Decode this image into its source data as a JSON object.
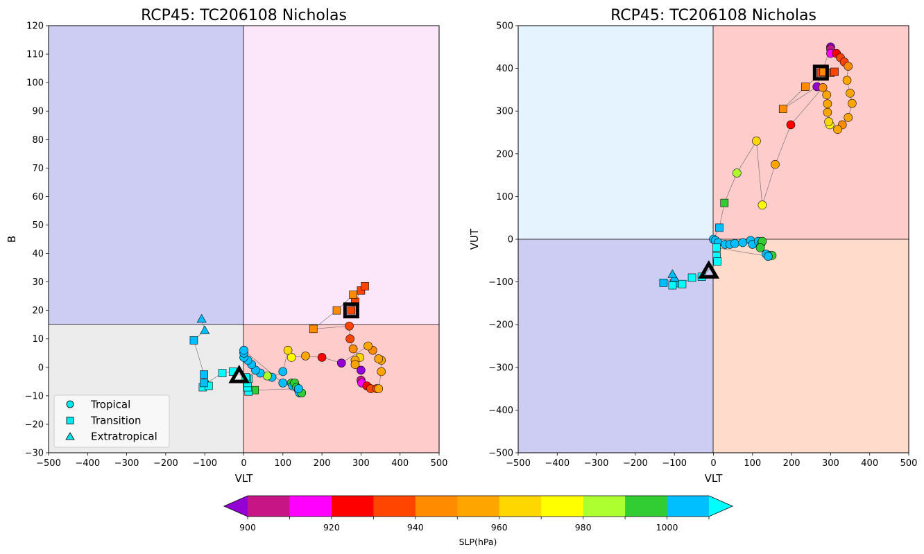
{
  "colors": {
    "quad_ll_left": "#ececec",
    "quad_ul_left": "#cdcdf4",
    "quad_ur_left": "#fce6f9",
    "quad_lr_left": "#ffcccc",
    "quad_ul_right": "#e5f3fe",
    "quad_ur_right": "#ffcccc",
    "quad_ll_right": "#cdcdf4",
    "quad_lr_right": "#ffdbcc",
    "track_line": "#666666"
  },
  "colorbar": {
    "label": "SLP(hPa)",
    "levels": [
      900,
      910,
      920,
      930,
      940,
      950,
      960,
      970,
      980,
      990,
      1000,
      1010
    ],
    "colors": [
      "#c71585",
      "#ff00ff",
      "#ff0000",
      "#ff4500",
      "#ff8c00",
      "#ffa500",
      "#ffd700",
      "#ffff00",
      "#adff2f",
      "#32cd32",
      "#00bfff"
    ],
    "under_color": "#9400d3",
    "over_color": "#00ffff",
    "tick_labels": [
      "900",
      "920",
      "940",
      "960",
      "980",
      "1000"
    ]
  },
  "legend": {
    "items": [
      {
        "label": "Tropical",
        "marker": "circle"
      },
      {
        "label": "Transition",
        "marker": "square"
      },
      {
        "label": "Extratropical",
        "marker": "triangle"
      }
    ]
  },
  "chart_data": [
    {
      "type": "scatter",
      "title": "RCP45: TC206108 Nicholas",
      "xlabel": "VLT",
      "ylabel": "B",
      "xlim": [
        -500,
        500
      ],
      "ylim": [
        -30,
        120
      ],
      "xticks": [
        -500,
        -400,
        -300,
        -200,
        -100,
        0,
        100,
        200,
        300,
        400,
        500
      ],
      "yticks": [
        -30,
        -20,
        -10,
        0,
        10,
        20,
        30,
        40,
        50,
        60,
        70,
        80,
        90,
        100,
        110,
        120
      ],
      "threshold_x": 0,
      "threshold_y": 15,
      "start_marker": {
        "x": 275,
        "y": 20,
        "type": "square"
      },
      "end_marker": {
        "x": -12,
        "y": -3,
        "type": "triangle"
      },
      "points": [
        {
          "x": 275,
          "y": 20,
          "slp": 935,
          "type": "square"
        },
        {
          "x": 285,
          "y": 23,
          "slp": 932,
          "type": "square"
        },
        {
          "x": 300,
          "y": 27,
          "slp": 934,
          "type": "square"
        },
        {
          "x": 310,
          "y": 28.5,
          "slp": 937,
          "type": "square"
        },
        {
          "x": 280,
          "y": 25.5,
          "slp": 943,
          "type": "square"
        },
        {
          "x": 238,
          "y": 20,
          "slp": 945,
          "type": "square"
        },
        {
          "x": 178,
          "y": 13.5,
          "slp": 946,
          "type": "square"
        },
        {
          "x": 270,
          "y": 14.5,
          "slp": 935,
          "type": "circle"
        },
        {
          "x": 272,
          "y": 10,
          "slp": 933,
          "type": "circle"
        },
        {
          "x": 280,
          "y": 6.5,
          "slp": 948,
          "type": "circle"
        },
        {
          "x": 297,
          "y": 3.5,
          "slp": 962,
          "type": "circle"
        },
        {
          "x": 285,
          "y": 2.5,
          "slp": 955,
          "type": "circle"
        },
        {
          "x": 285,
          "y": 1,
          "slp": 958,
          "type": "circle"
        },
        {
          "x": 300,
          "y": -1,
          "slp": 898,
          "type": "circle"
        },
        {
          "x": 300,
          "y": -4.5,
          "slp": 905,
          "type": "circle"
        },
        {
          "x": 302,
          "y": -5.5,
          "slp": 912,
          "type": "circle"
        },
        {
          "x": 315,
          "y": -6.5,
          "slp": 925,
          "type": "circle"
        },
        {
          "x": 325,
          "y": -7.5,
          "slp": 930,
          "type": "circle"
        },
        {
          "x": 340,
          "y": -7.5,
          "slp": 935,
          "type": "circle"
        },
        {
          "x": 345,
          "y": -7.5,
          "slp": 955,
          "type": "circle"
        },
        {
          "x": 352,
          "y": -1.5,
          "slp": 952,
          "type": "circle"
        },
        {
          "x": 352,
          "y": 2.5,
          "slp": 955,
          "type": "circle"
        },
        {
          "x": 345,
          "y": 3,
          "slp": 950,
          "type": "circle"
        },
        {
          "x": 330,
          "y": 6,
          "slp": 948,
          "type": "circle"
        },
        {
          "x": 318,
          "y": 7.5,
          "slp": 953,
          "type": "circle"
        },
        {
          "x": 250,
          "y": 1.5,
          "slp": 898,
          "type": "circle"
        },
        {
          "x": 200,
          "y": 3.5,
          "slp": 925,
          "type": "circle"
        },
        {
          "x": 158,
          "y": 4,
          "slp": 955,
          "type": "circle"
        },
        {
          "x": 122,
          "y": 3.5,
          "slp": 975,
          "type": "circle"
        },
        {
          "x": 113,
          "y": 6,
          "slp": 965,
          "type": "circle"
        },
        {
          "x": 100,
          "y": -1.5,
          "slp": 1005,
          "type": "circle"
        },
        {
          "x": 72,
          "y": -3.5,
          "slp": 1005,
          "type": "circle"
        },
        {
          "x": 60,
          "y": -3,
          "slp": 985,
          "type": "circle"
        },
        {
          "x": 42,
          "y": -2,
          "slp": 1005,
          "type": "circle"
        },
        {
          "x": 30,
          "y": -1,
          "slp": 1005,
          "type": "circle"
        },
        {
          "x": 20,
          "y": 1,
          "slp": 1005,
          "type": "circle"
        },
        {
          "x": 10,
          "y": 2.5,
          "slp": 1005,
          "type": "circle"
        },
        {
          "x": 0,
          "y": 3.5,
          "slp": 1005,
          "type": "circle"
        },
        {
          "x": 0,
          "y": 5,
          "slp": 1005,
          "type": "circle"
        },
        {
          "x": 0,
          "y": 6,
          "slp": 1005,
          "type": "circle"
        },
        {
          "x": 100,
          "y": -5.5,
          "slp": 1005,
          "type": "circle"
        },
        {
          "x": 122,
          "y": -5.5,
          "slp": 995,
          "type": "circle"
        },
        {
          "x": 125,
          "y": -6.5,
          "slp": 1005,
          "type": "circle"
        },
        {
          "x": 130,
          "y": -5.5,
          "slp": 995,
          "type": "circle"
        },
        {
          "x": 135,
          "y": -7,
          "slp": 995,
          "type": "circle"
        },
        {
          "x": 140,
          "y": -8,
          "slp": 1005,
          "type": "circle"
        },
        {
          "x": 143,
          "y": -9,
          "slp": 1005,
          "type": "circle"
        },
        {
          "x": 148,
          "y": -9,
          "slp": 995,
          "type": "circle"
        },
        {
          "x": 140,
          "y": -7.5,
          "slp": 1005,
          "type": "circle"
        },
        {
          "x": 28,
          "y": -8,
          "slp": 995,
          "type": "square"
        },
        {
          "x": 12,
          "y": -8.5,
          "slp": 1012,
          "type": "square"
        },
        {
          "x": 10,
          "y": -7,
          "slp": 1012,
          "type": "square"
        },
        {
          "x": 10,
          "y": -5.5,
          "slp": 1012,
          "type": "square"
        },
        {
          "x": 12,
          "y": -4,
          "slp": 1012,
          "type": "square"
        },
        {
          "x": 8,
          "y": -4,
          "slp": 1012,
          "type": "square"
        },
        {
          "x": 5,
          "y": -3.5,
          "slp": 1012,
          "type": "square"
        },
        {
          "x": -28,
          "y": -1.5,
          "slp": 1012,
          "type": "square"
        },
        {
          "x": -55,
          "y": -2,
          "slp": 1012,
          "type": "square"
        },
        {
          "x": -100,
          "y": -6,
          "slp": 1012,
          "type": "square"
        },
        {
          "x": -105,
          "y": -7,
          "slp": 1012,
          "type": "square"
        },
        {
          "x": -90,
          "y": -6.5,
          "slp": 1012,
          "type": "square"
        },
        {
          "x": -102,
          "y": -5.5,
          "slp": 1005,
          "type": "square"
        },
        {
          "x": -102,
          "y": -2.5,
          "slp": 1005,
          "type": "square"
        },
        {
          "x": -128,
          "y": 9.5,
          "slp": 1005,
          "type": "square"
        },
        {
          "x": -100,
          "y": 13,
          "slp": 1005,
          "type": "triangle"
        },
        {
          "x": -108,
          "y": 17,
          "slp": 1005,
          "type": "triangle"
        }
      ]
    },
    {
      "type": "scatter",
      "title": "RCP45: TC206108 Nicholas",
      "xlabel": "VLT",
      "ylabel": "VUT",
      "xlim": [
        -500,
        500
      ],
      "ylim": [
        -500,
        500
      ],
      "xticks": [
        -500,
        -400,
        -300,
        -200,
        -100,
        0,
        100,
        200,
        300,
        400,
        500
      ],
      "yticks": [
        -500,
        -400,
        -300,
        -200,
        -100,
        0,
        100,
        200,
        300,
        400,
        500
      ],
      "threshold_x": 0,
      "threshold_y": 0,
      "start_marker": {
        "x": 275,
        "y": 390,
        "type": "square"
      },
      "end_marker": {
        "x": -12,
        "y": -75,
        "type": "triangle"
      },
      "points": [
        {
          "x": 275,
          "y": 390,
          "slp": 935,
          "type": "square"
        },
        {
          "x": 290,
          "y": 390,
          "slp": 930,
          "type": "square"
        },
        {
          "x": 300,
          "y": 390,
          "slp": 935,
          "type": "square"
        },
        {
          "x": 310,
          "y": 392,
          "slp": 937,
          "type": "square"
        },
        {
          "x": 282,
          "y": 392,
          "slp": 940,
          "type": "square"
        },
        {
          "x": 235,
          "y": 357,
          "slp": 945,
          "type": "square"
        },
        {
          "x": 178,
          "y": 305,
          "slp": 946,
          "type": "square"
        },
        {
          "x": 265,
          "y": 357,
          "slp": 898,
          "type": "circle"
        },
        {
          "x": 300,
          "y": 450,
          "slp": 898,
          "type": "circle"
        },
        {
          "x": 300,
          "y": 445,
          "slp": 905,
          "type": "circle"
        },
        {
          "x": 300,
          "y": 435,
          "slp": 912,
          "type": "circle"
        },
        {
          "x": 315,
          "y": 435,
          "slp": 925,
          "type": "circle"
        },
        {
          "x": 325,
          "y": 425,
          "slp": 930,
          "type": "circle"
        },
        {
          "x": 335,
          "y": 415,
          "slp": 935,
          "type": "circle"
        },
        {
          "x": 345,
          "y": 405,
          "slp": 948,
          "type": "circle"
        },
        {
          "x": 342,
          "y": 372,
          "slp": 952,
          "type": "circle"
        },
        {
          "x": 350,
          "y": 342,
          "slp": 955,
          "type": "circle"
        },
        {
          "x": 355,
          "y": 318,
          "slp": 955,
          "type": "circle"
        },
        {
          "x": 345,
          "y": 285,
          "slp": 950,
          "type": "circle"
        },
        {
          "x": 330,
          "y": 268,
          "slp": 948,
          "type": "circle"
        },
        {
          "x": 318,
          "y": 257,
          "slp": 953,
          "type": "circle"
        },
        {
          "x": 298,
          "y": 268,
          "slp": 975,
          "type": "circle"
        },
        {
          "x": 295,
          "y": 275,
          "slp": 962,
          "type": "circle"
        },
        {
          "x": 292,
          "y": 297,
          "slp": 958,
          "type": "circle"
        },
        {
          "x": 292,
          "y": 317,
          "slp": 955,
          "type": "circle"
        },
        {
          "x": 290,
          "y": 338,
          "slp": 955,
          "type": "circle"
        },
        {
          "x": 280,
          "y": 355,
          "slp": 948,
          "type": "circle"
        },
        {
          "x": 198,
          "y": 268,
          "slp": 925,
          "type": "circle"
        },
        {
          "x": 158,
          "y": 175,
          "slp": 955,
          "type": "circle"
        },
        {
          "x": 125,
          "y": 80,
          "slp": 975,
          "type": "circle"
        },
        {
          "x": 110,
          "y": 230,
          "slp": 965,
          "type": "circle"
        },
        {
          "x": 60,
          "y": 155,
          "slp": 985,
          "type": "circle"
        },
        {
          "x": 28,
          "y": 85,
          "slp": 995,
          "type": "square"
        },
        {
          "x": 15,
          "y": 27,
          "slp": 1005,
          "type": "square"
        },
        {
          "x": 0,
          "y": 0,
          "slp": 1005,
          "type": "circle"
        },
        {
          "x": 5,
          "y": -3,
          "slp": 1005,
          "type": "circle"
        },
        {
          "x": 12,
          "y": -8,
          "slp": 1005,
          "type": "circle"
        },
        {
          "x": 30,
          "y": -12,
          "slp": 1005,
          "type": "circle"
        },
        {
          "x": 42,
          "y": -12,
          "slp": 1005,
          "type": "circle"
        },
        {
          "x": 55,
          "y": -10,
          "slp": 1005,
          "type": "circle"
        },
        {
          "x": 75,
          "y": -8,
          "slp": 1005,
          "type": "circle"
        },
        {
          "x": 95,
          "y": -3,
          "slp": 1005,
          "type": "circle"
        },
        {
          "x": 100,
          "y": -12,
          "slp": 1005,
          "type": "circle"
        },
        {
          "x": 115,
          "y": -5,
          "slp": 1005,
          "type": "circle"
        },
        {
          "x": 122,
          "y": -10,
          "slp": 995,
          "type": "circle"
        },
        {
          "x": 125,
          "y": -5,
          "slp": 995,
          "type": "circle"
        },
        {
          "x": 120,
          "y": -20,
          "slp": 995,
          "type": "circle"
        },
        {
          "x": 135,
          "y": -35,
          "slp": 1005,
          "type": "circle"
        },
        {
          "x": 145,
          "y": -38,
          "slp": 1005,
          "type": "circle"
        },
        {
          "x": 150,
          "y": -38,
          "slp": 995,
          "type": "circle"
        },
        {
          "x": 140,
          "y": -40,
          "slp": 1005,
          "type": "circle"
        },
        {
          "x": 8,
          "y": -20,
          "slp": 1012,
          "type": "square"
        },
        {
          "x": 8,
          "y": -40,
          "slp": 1012,
          "type": "square"
        },
        {
          "x": 10,
          "y": -52,
          "slp": 1012,
          "type": "square"
        },
        {
          "x": -30,
          "y": -88,
          "slp": 1012,
          "type": "square"
        },
        {
          "x": -55,
          "y": -90,
          "slp": 1012,
          "type": "square"
        },
        {
          "x": -80,
          "y": -105,
          "slp": 1012,
          "type": "square"
        },
        {
          "x": -100,
          "y": -103,
          "slp": 1005,
          "type": "square"
        },
        {
          "x": -105,
          "y": -108,
          "slp": 1012,
          "type": "square"
        },
        {
          "x": -128,
          "y": -102,
          "slp": 1005,
          "type": "square"
        },
        {
          "x": -100,
          "y": -90,
          "slp": 1005,
          "type": "triangle"
        },
        {
          "x": -105,
          "y": -82,
          "slp": 1005,
          "type": "triangle"
        }
      ]
    }
  ]
}
